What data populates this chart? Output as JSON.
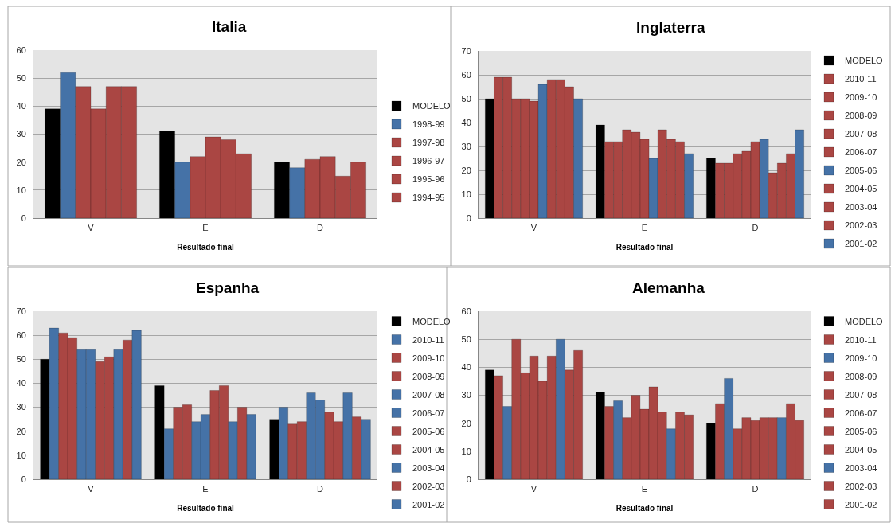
{
  "chart_data": [
    {
      "type": "bar",
      "title": "Italia",
      "xlabel": "Resultado final",
      "categories": [
        "V",
        "E",
        "D"
      ],
      "ylim": [
        0,
        60
      ],
      "yticks": [
        0,
        10,
        20,
        30,
        40,
        50,
        60
      ],
      "grid": "y",
      "legend": "right",
      "series": [
        {
          "name": "MODELO",
          "color": "#000000",
          "values": [
            39,
            31,
            20
          ]
        },
        {
          "name": "1998-99",
          "color": "#4572a7",
          "values": [
            52,
            20,
            18
          ]
        },
        {
          "name": "1997-98",
          "color": "#aa4643",
          "values": [
            47,
            22,
            21
          ]
        },
        {
          "name": "1996-97",
          "color": "#aa4643",
          "values": [
            39,
            29,
            22
          ]
        },
        {
          "name": "1995-96",
          "color": "#aa4643",
          "values": [
            47,
            28,
            15
          ]
        },
        {
          "name": "1994-95",
          "color": "#aa4643",
          "values": [
            47,
            23,
            20
          ]
        }
      ]
    },
    {
      "type": "bar",
      "title": "Inglaterra",
      "xlabel": "Resultado final",
      "categories": [
        "V",
        "E",
        "D"
      ],
      "ylim": [
        0,
        70
      ],
      "yticks": [
        0,
        10,
        20,
        30,
        40,
        50,
        60,
        70
      ],
      "grid": "y",
      "legend": "right",
      "series": [
        {
          "name": "MODELO",
          "color": "#000000",
          "values": [
            50,
            39,
            25
          ]
        },
        {
          "name": "2010-11",
          "color": "#aa4643",
          "values": [
            59,
            32,
            23
          ]
        },
        {
          "name": "2009-10",
          "color": "#aa4643",
          "values": [
            59,
            32,
            23
          ]
        },
        {
          "name": "2008-09",
          "color": "#aa4643",
          "values": [
            50,
            37,
            27
          ]
        },
        {
          "name": "2007-08",
          "color": "#aa4643",
          "values": [
            50,
            36,
            28
          ]
        },
        {
          "name": "2006-07",
          "color": "#aa4643",
          "values": [
            49,
            33,
            32
          ]
        },
        {
          "name": "2005-06",
          "color": "#4572a7",
          "values": [
            56,
            25,
            33
          ]
        },
        {
          "name": "2004-05",
          "color": "#aa4643",
          "values": [
            58,
            37,
            19
          ]
        },
        {
          "name": "2003-04",
          "color": "#aa4643",
          "values": [
            58,
            33,
            23
          ]
        },
        {
          "name": "2002-03",
          "color": "#aa4643",
          "values": [
            55,
            32,
            27
          ]
        },
        {
          "name": "2001-02",
          "color": "#4572a7",
          "values": [
            50,
            27,
            37
          ]
        }
      ]
    },
    {
      "type": "bar",
      "title": "Espanha",
      "xlabel": "Resultado final",
      "categories": [
        "V",
        "E",
        "D"
      ],
      "ylim": [
        0,
        70
      ],
      "yticks": [
        0,
        10,
        20,
        30,
        40,
        50,
        60,
        70
      ],
      "grid": "y",
      "legend": "right",
      "series": [
        {
          "name": "MODELO",
          "color": "#000000",
          "values": [
            50,
            39,
            25
          ]
        },
        {
          "name": "2010-11",
          "color": "#4572a7",
          "values": [
            63,
            21,
            30
          ]
        },
        {
          "name": "2009-10",
          "color": "#aa4643",
          "values": [
            61,
            30,
            23
          ]
        },
        {
          "name": "2008-09",
          "color": "#aa4643",
          "values": [
            59,
            31,
            24
          ]
        },
        {
          "name": "2007-08",
          "color": "#4572a7",
          "values": [
            54,
            24,
            36
          ]
        },
        {
          "name": "2006-07",
          "color": "#4572a7",
          "values": [
            54,
            27,
            33
          ]
        },
        {
          "name": "2005-06",
          "color": "#aa4643",
          "values": [
            49,
            37,
            28
          ]
        },
        {
          "name": "2004-05",
          "color": "#aa4643",
          "values": [
            51,
            39,
            24
          ]
        },
        {
          "name": "2003-04",
          "color": "#4572a7",
          "values": [
            54,
            24,
            36
          ]
        },
        {
          "name": "2002-03",
          "color": "#aa4643",
          "values": [
            58,
            30,
            26
          ]
        },
        {
          "name": "2001-02",
          "color": "#4572a7",
          "values": [
            62,
            27,
            25
          ]
        }
      ]
    },
    {
      "type": "bar",
      "title": "Alemanha",
      "xlabel": "Resultado final",
      "categories": [
        "V",
        "E",
        "D"
      ],
      "ylim": [
        0,
        60
      ],
      "yticks": [
        0,
        10,
        20,
        30,
        40,
        50,
        60
      ],
      "grid": "y",
      "legend": "right",
      "series": [
        {
          "name": "MODELO",
          "color": "#000000",
          "values": [
            39,
            31,
            20
          ]
        },
        {
          "name": "2010-11",
          "color": "#aa4643",
          "values": [
            37,
            26,
            27
          ]
        },
        {
          "name": "2009-10",
          "color": "#4572a7",
          "values": [
            26,
            28,
            36
          ]
        },
        {
          "name": "2008-09",
          "color": "#aa4643",
          "values": [
            50,
            22,
            18
          ]
        },
        {
          "name": "2007-08",
          "color": "#aa4643",
          "values": [
            38,
            30,
            22
          ]
        },
        {
          "name": "2006-07",
          "color": "#aa4643",
          "values": [
            44,
            25,
            21
          ]
        },
        {
          "name": "2005-06",
          "color": "#aa4643",
          "values": [
            35,
            33,
            22
          ]
        },
        {
          "name": "2004-05",
          "color": "#aa4643",
          "values": [
            44,
            24,
            22
          ]
        },
        {
          "name": "2003-04",
          "color": "#4572a7",
          "values": [
            50,
            18,
            22
          ]
        },
        {
          "name": "2002-03",
          "color": "#aa4643",
          "values": [
            39,
            24,
            27
          ]
        },
        {
          "name": "2001-02",
          "color": "#aa4643",
          "values": [
            46,
            23,
            21
          ]
        }
      ]
    }
  ]
}
